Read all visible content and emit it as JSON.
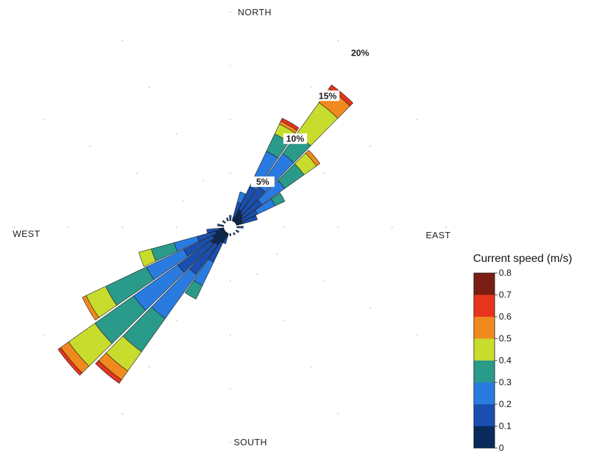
{
  "chart_data": {
    "type": "polar-bar",
    "title": "",
    "directions": {
      "north": "NORTH",
      "south": "SOUTH",
      "east": "EAST",
      "west": "WEST"
    },
    "radial_ticks": [
      "5%",
      "10%",
      "15%",
      "20%"
    ],
    "radial_max": 20,
    "legend": {
      "title": "Current speed (m/s)",
      "bins": [
        0,
        0.1,
        0.2,
        0.3,
        0.4,
        0.5,
        0.6,
        0.7,
        0.8
      ],
      "tick_labels": [
        "0",
        "0.1",
        "0.2",
        "0.3",
        "0.4",
        "0.5",
        "0.6",
        "0.7",
        "0.8"
      ],
      "colors": [
        "#0a2a5c",
        "#1a4fb0",
        "#2a7be0",
        "#2a9a8a",
        "#c8dc2e",
        "#f08a1e",
        "#e8341c",
        "#7a1e14"
      ]
    },
    "sectors": [
      {
        "direction_deg": 20,
        "cumulative_pct": [
          1.0,
          2.4,
          3.4
        ]
      },
      {
        "direction_deg": 30,
        "cumulative_pct": [
          1.8,
          4.2,
          7.8,
          9.6,
          10.6,
          10.9,
          11.2
        ]
      },
      {
        "direction_deg": 40,
        "cumulative_pct": [
          1.6,
          4.6,
          8.4,
          10.6,
          14.2,
          15.8,
          16.2
        ]
      },
      {
        "direction_deg": 50,
        "cumulative_pct": [
          1.4,
          3.6,
          6.2,
          8.4,
          9.8,
          10.2
        ]
      },
      {
        "direction_deg": 60,
        "cumulative_pct": [
          1.2,
          2.8,
          4.6,
          5.6
        ]
      },
      {
        "direction_deg": 70,
        "cumulative_pct": [
          1.2,
          2.6
        ]
      },
      {
        "direction_deg": 90,
        "cumulative_pct": [
          0.8,
          1.2
        ]
      },
      {
        "direction_deg": 120,
        "cumulative_pct": [
          0.6,
          0.9
        ]
      },
      {
        "direction_deg": 150,
        "cumulative_pct": [
          0.5,
          0.8
        ]
      },
      {
        "direction_deg": 180,
        "cumulative_pct": [
          0.5,
          0.8
        ]
      },
      {
        "direction_deg": 200,
        "cumulative_pct": [
          1.0,
          1.6
        ]
      },
      {
        "direction_deg": 210,
        "cumulative_pct": [
          1.6,
          3.6,
          6.0,
          7.4
        ]
      },
      {
        "direction_deg": 220,
        "cumulative_pct": [
          2.0,
          5.4,
          10.4,
          14.2,
          16.4,
          17.4,
          17.8
        ]
      },
      {
        "direction_deg": 230,
        "cumulative_pct": [
          2.2,
          6.0,
          11.0,
          15.4,
          18.4,
          19.3,
          19.6
        ]
      },
      {
        "direction_deg": 240,
        "cumulative_pct": [
          1.8,
          4.8,
          8.6,
          12.8,
          14.8,
          15.2
        ]
      },
      {
        "direction_deg": 250,
        "cumulative_pct": [
          1.4,
          3.2,
          5.4,
          7.6,
          8.8
        ]
      },
      {
        "direction_deg": 260,
        "cumulative_pct": [
          1.0,
          2.2
        ]
      },
      {
        "direction_deg": 280,
        "cumulative_pct": [
          0.8,
          1.2
        ]
      },
      {
        "direction_deg": 310,
        "cumulative_pct": [
          0.6,
          0.9
        ]
      },
      {
        "direction_deg": 340,
        "cumulative_pct": [
          0.6,
          0.9
        ]
      },
      {
        "direction_deg": 0,
        "cumulative_pct": [
          0.7,
          1.1
        ]
      }
    ]
  }
}
